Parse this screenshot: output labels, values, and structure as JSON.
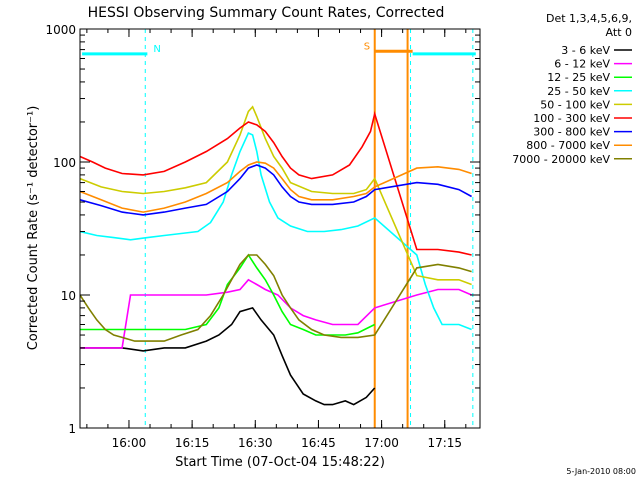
{
  "chart_data": {
    "type": "line",
    "title": "HESSI Observing Summary Count Rates, Corrected",
    "xlabel": "Start Time (07-Oct-04 15:48:22)",
    "ylabel": "Corrected Count Rate (s⁻¹ detector⁻¹)",
    "x_unit": "minutes after 15:48:22",
    "xlim": [
      0,
      95
    ],
    "ylim": [
      1,
      1000
    ],
    "yscale": "log",
    "x_ticks": [
      {
        "x": 11.63,
        "label": "16:00"
      },
      {
        "x": 26.63,
        "label": "16:15"
      },
      {
        "x": 41.63,
        "label": "16:30"
      },
      {
        "x": 56.63,
        "label": "16:45"
      },
      {
        "x": 71.63,
        "label": "17:00"
      },
      {
        "x": 86.63,
        "label": "17:15"
      }
    ],
    "y_ticks": [
      {
        "y": 1,
        "label": "1"
      },
      {
        "y": 10,
        "label": "10"
      },
      {
        "y": 100,
        "label": "100"
      },
      {
        "y": 1000,
        "label": "1000"
      }
    ],
    "legend_header": [
      "Det 1,3,4,5,6,9,",
      "Att 0"
    ],
    "legend_position": "right",
    "footer": "5-Jan-2010 08:00",
    "state_bars": [
      {
        "label": "",
        "x0": 0.5,
        "x1": 16,
        "y": 650,
        "color": "#00ffff"
      },
      {
        "label": "N",
        "x0": 16,
        "x1": 16,
        "y": 650,
        "color": "#00ffff"
      },
      {
        "label": "S",
        "x0": 70,
        "x1": 79,
        "y": 680,
        "color": "#ff8c00"
      },
      {
        "label": "",
        "x0": 79,
        "x1": 94,
        "y": 650,
        "color": "#00ffff"
      }
    ],
    "vlines": [
      {
        "x": 15.5,
        "color": "#00ffff",
        "style": "dashed"
      },
      {
        "x": 78.5,
        "color": "#00ffff",
        "style": "dashed"
      },
      {
        "x": 93.3,
        "color": "#00ffff",
        "style": "dashed"
      },
      {
        "x": 70.0,
        "color": "#ff8c00",
        "style": "solid"
      },
      {
        "x": 77.8,
        "color": "#ff8c00",
        "style": "solid"
      }
    ],
    "series": [
      {
        "name": "3 - 6 keV",
        "color": "#000000",
        "x": [
          0,
          5,
          10,
          15,
          20,
          25,
          30,
          33,
          36,
          38,
          41,
          43,
          46,
          48,
          50,
          53,
          56,
          58,
          60,
          63,
          65,
          68,
          70
        ],
        "y": [
          4,
          4,
          4,
          3.8,
          4,
          4,
          4.5,
          5,
          6,
          7.5,
          8,
          6.5,
          5,
          3.5,
          2.5,
          1.8,
          1.6,
          1.5,
          1.5,
          1.6,
          1.5,
          1.7,
          2
        ]
      },
      {
        "name": "6 - 12 keV",
        "color": "#ff00ff",
        "x": [
          0,
          5,
          10,
          12,
          15,
          20,
          25,
          30,
          35,
          38,
          40,
          42,
          44,
          47,
          50,
          53,
          56,
          60,
          63,
          66,
          70,
          80,
          85,
          90,
          93
        ],
        "y": [
          4,
          4,
          4,
          10,
          10,
          10,
          10,
          10,
          10.5,
          11,
          13,
          12,
          11,
          10,
          8,
          7,
          6.5,
          6,
          6,
          6,
          8,
          10,
          11,
          11,
          10
        ]
      },
      {
        "name": "12 - 25 keV",
        "color": "#00ff00",
        "x": [
          0,
          5,
          10,
          15,
          20,
          25,
          30,
          33,
          35,
          38,
          40,
          42,
          44,
          46,
          48,
          50,
          53,
          56,
          60,
          63,
          66,
          70
        ],
        "y": [
          5.5,
          5.5,
          5.5,
          5.5,
          5.5,
          5.5,
          6,
          8,
          12,
          16,
          20,
          16,
          13,
          10,
          7.5,
          6,
          5.5,
          5,
          5,
          5,
          5.2,
          6
        ]
      },
      {
        "name": "25 - 50 keV",
        "color": "#00ffff",
        "x": [
          0,
          4,
          8,
          12,
          16,
          20,
          24,
          28,
          31,
          34,
          36,
          38,
          40,
          41,
          42,
          43,
          45,
          47,
          50,
          54,
          58,
          62,
          66,
          70,
          80,
          82,
          84,
          86,
          88,
          90,
          93
        ],
        "y": [
          30,
          28,
          27,
          26,
          27,
          28,
          29,
          30,
          35,
          50,
          80,
          120,
          165,
          160,
          120,
          80,
          50,
          38,
          33,
          30,
          30,
          31,
          33,
          38,
          20,
          12,
          8,
          6,
          6,
          6,
          5.5
        ]
      },
      {
        "name": "50 - 100 keV",
        "color": "#cccc00",
        "x": [
          0,
          5,
          10,
          15,
          20,
          25,
          30,
          35,
          38,
          40,
          41,
          42,
          44,
          46,
          48,
          50,
          55,
          60,
          65,
          68,
          70,
          80,
          85,
          90,
          93
        ],
        "y": [
          75,
          65,
          60,
          58,
          60,
          64,
          70,
          100,
          160,
          240,
          260,
          220,
          150,
          110,
          90,
          70,
          60,
          58,
          58,
          62,
          75,
          14,
          13,
          13,
          12
        ]
      },
      {
        "name": "100 - 300 keV",
        "color": "#ff0000",
        "x": [
          0,
          3,
          6,
          10,
          15,
          20,
          25,
          30,
          35,
          38,
          40,
          42,
          44,
          46,
          48,
          50,
          52,
          55,
          60,
          64,
          67,
          69,
          70,
          80,
          85,
          90,
          93
        ],
        "y": [
          110,
          100,
          90,
          82,
          80,
          85,
          100,
          120,
          150,
          180,
          200,
          190,
          170,
          140,
          110,
          90,
          80,
          75,
          80,
          95,
          130,
          170,
          230,
          22,
          22,
          21,
          20
        ]
      },
      {
        "name": "300 - 800 keV",
        "color": "#0000ff",
        "x": [
          0,
          5,
          10,
          15,
          20,
          25,
          30,
          35,
          38,
          40,
          42,
          44,
          46,
          48,
          50,
          52,
          55,
          60,
          65,
          68,
          70,
          80,
          85,
          90,
          93
        ],
        "y": [
          52,
          47,
          42,
          40,
          42,
          45,
          48,
          60,
          75,
          90,
          95,
          90,
          80,
          65,
          55,
          50,
          48,
          48,
          50,
          55,
          62,
          70,
          68,
          62,
          55
        ]
      },
      {
        "name": "800 - 7000 keV",
        "color": "#ff8c00",
        "x": [
          0,
          5,
          10,
          15,
          20,
          25,
          30,
          35,
          38,
          40,
          42,
          44,
          46,
          48,
          50,
          52,
          55,
          60,
          65,
          68,
          70,
          80,
          85,
          90,
          93
        ],
        "y": [
          60,
          52,
          45,
          42,
          45,
          50,
          58,
          70,
          85,
          95,
          100,
          98,
          90,
          75,
          62,
          55,
          52,
          52,
          55,
          58,
          65,
          90,
          92,
          88,
          82
        ]
      },
      {
        "name": "7000 - 20000 keV",
        "color": "#808000",
        "x": [
          0,
          2,
          4,
          6,
          8,
          10,
          13,
          16,
          20,
          24,
          28,
          31,
          34,
          36,
          38,
          40,
          42,
          44,
          46,
          48,
          50,
          52,
          55,
          58,
          62,
          66,
          70,
          80,
          85,
          90,
          93
        ],
        "y": [
          10,
          8,
          6.5,
          5.5,
          5,
          4.8,
          4.5,
          4.5,
          4.5,
          5,
          5.5,
          7,
          10,
          13,
          17,
          20,
          20,
          17,
          14,
          10,
          8,
          6.5,
          5.5,
          5,
          4.8,
          4.8,
          5,
          16,
          17,
          16,
          15
        ]
      }
    ]
  }
}
